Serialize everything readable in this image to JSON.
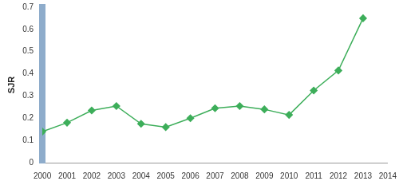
{
  "chart_data": {
    "type": "line",
    "y_label": "SJR",
    "x": [
      2000,
      2001,
      2002,
      2003,
      2004,
      2005,
      2006,
      2007,
      2008,
      2009,
      2010,
      2011,
      2012,
      2013
    ],
    "values": [
      0.14,
      0.18,
      0.235,
      0.255,
      0.175,
      0.16,
      0.2,
      0.245,
      0.255,
      0.24,
      0.215,
      0.325,
      0.415,
      0.65
    ],
    "color": "#3dae5a",
    "marker": "diamond",
    "xlim": [
      2000,
      2014
    ],
    "xticks": [
      2000,
      2001,
      2002,
      2003,
      2004,
      2005,
      2006,
      2007,
      2008,
      2009,
      2010,
      2011,
      2012,
      2013,
      2014
    ],
    "ylim": [
      0,
      0.7
    ],
    "yticks": [
      0,
      0.1,
      0.2,
      0.3,
      0.4,
      0.5,
      0.6,
      0.7
    ],
    "grid": false
  }
}
